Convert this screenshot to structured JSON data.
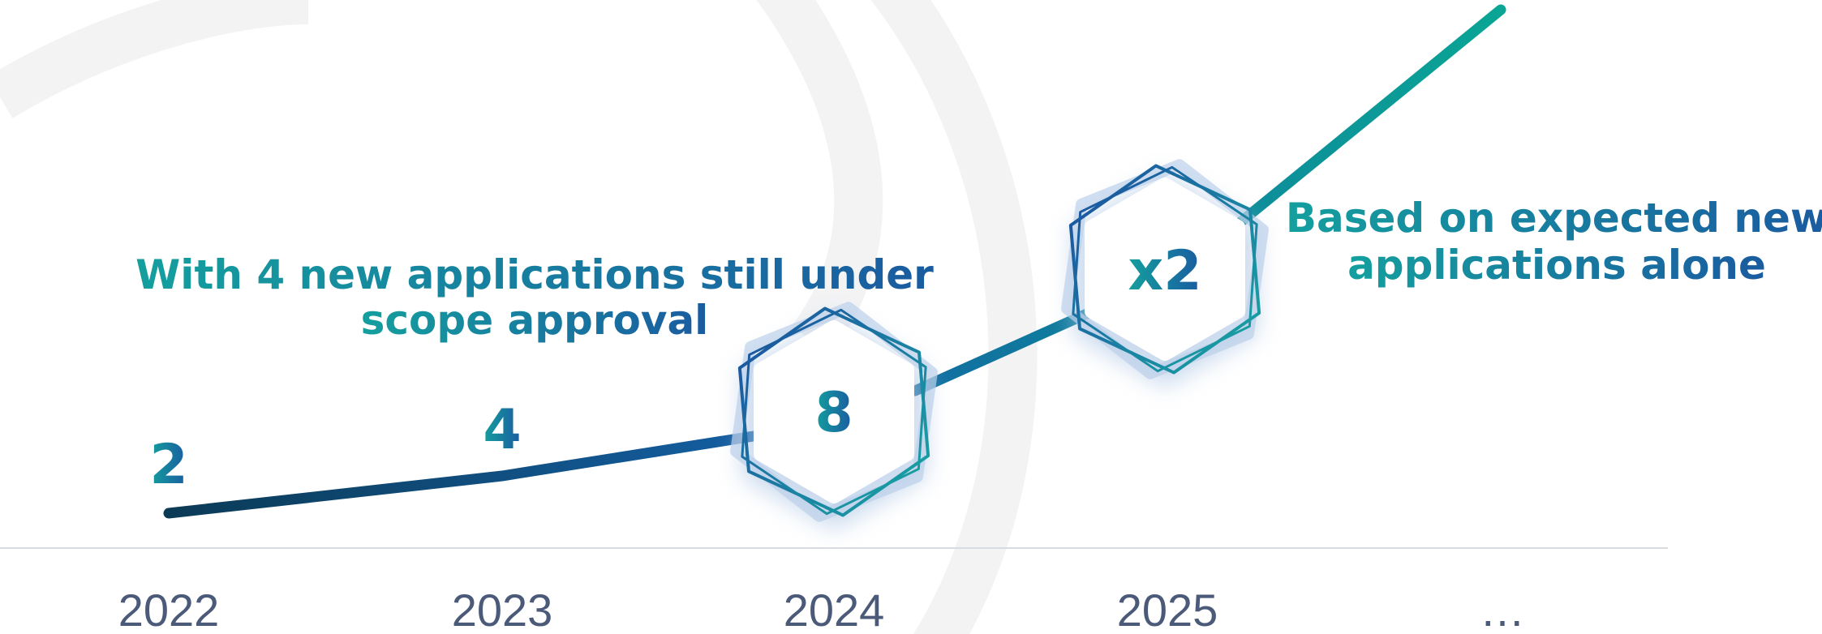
{
  "years": [
    "2022",
    "2023",
    "2024",
    "2025",
    "…"
  ],
  "point_labels": [
    "2",
    "4",
    "8",
    "x2"
  ],
  "annotations": [
    {
      "lines": [
        "With 4 new applications still under",
        "scope approval"
      ]
    },
    {
      "lines": [
        "Based on expected new",
        "applications alone"
      ]
    }
  ]
}
